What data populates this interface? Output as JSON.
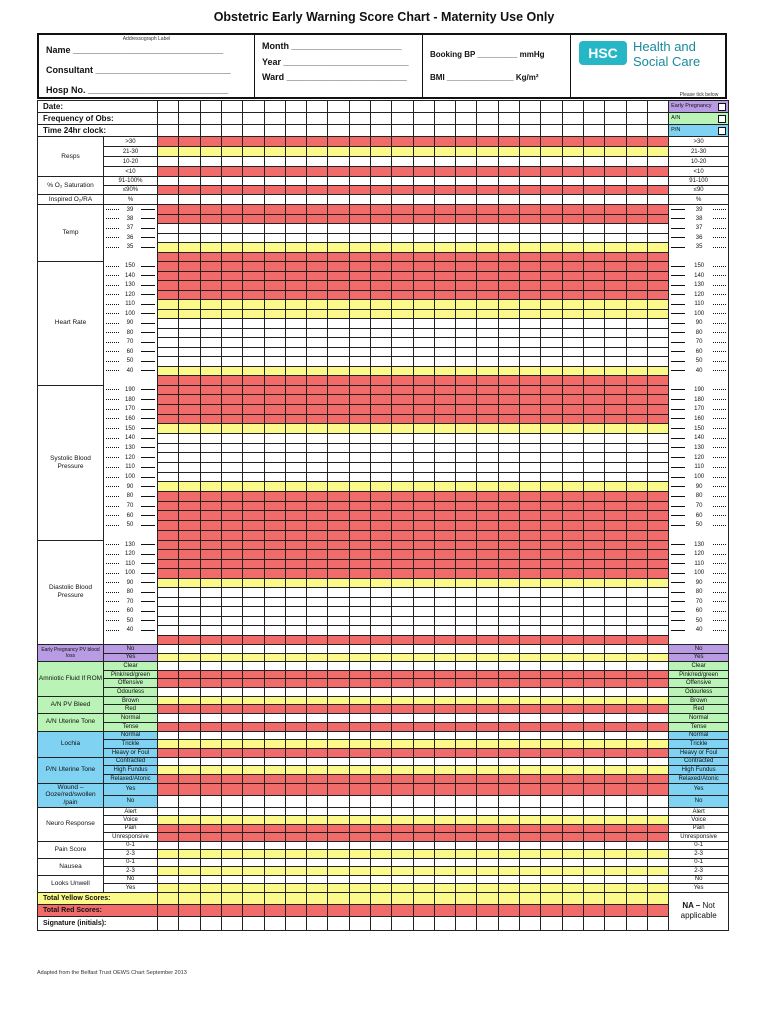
{
  "title": "Obstetric Early Warning Score Chart - Maternity Use Only",
  "header": {
    "addressograph": "Addressograph Label",
    "name": "Name ______________________________",
    "consultant": "Consultant ___________________________",
    "hosp_no": "Hosp No. ____________________________",
    "month": "Month ______________________",
    "year": "Year _________________________",
    "ward": "Ward ________________________",
    "booking_bp": "Booking BP _________ mmHg",
    "bmi": "BMI _______________ Kg/m²",
    "logo_mark": "HSC",
    "logo_line1": "Health and",
    "logo_line2": "Social Care",
    "tick_note": "Please tick below"
  },
  "colors": {
    "red": "#f26b6b",
    "yellow": "#fbf98a",
    "white": "#ffffff",
    "purple": "#b89be3",
    "green": "#b9f3b5",
    "blue": "#7fd2f2"
  },
  "top_rows": [
    {
      "label": "Date:",
      "tick": "Early Pregnancy",
      "tick_color": "purple"
    },
    {
      "label": "Frequency of Obs:",
      "tick": "A/N",
      "tick_color": "green"
    },
    {
      "label": "Time 24hr clock:",
      "tick": "P/N",
      "tick_color": "blue"
    }
  ],
  "columns": 24,
  "sections": [
    {
      "label": "Resps",
      "bg": "white",
      "h": 10,
      "rows": [
        {
          "v": ">30",
          "c": "red"
        },
        {
          "v": "21-30",
          "c": "yellow"
        },
        {
          "v": "10-20",
          "c": "white"
        },
        {
          "v": "<10",
          "c": "red"
        }
      ]
    },
    {
      "label": "% O₂ Saturation",
      "bg": "white",
      "h": 9,
      "rows": [
        {
          "v": "91-100%",
          "r": "91-100",
          "c": "white"
        },
        {
          "v": "≤90%",
          "r": "≤90",
          "c": "red"
        }
      ]
    },
    {
      "label": "Inspired O₂/RA",
      "bg": "white",
      "h": 10,
      "rows": [
        {
          "v": "%",
          "c": "white"
        }
      ]
    },
    {
      "label": "Temp",
      "bg": "white",
      "h": 9.5,
      "scale": true,
      "rows": [
        {
          "v": "39",
          "c": "red"
        },
        {
          "v": "38",
          "c": "red"
        },
        {
          "v": "37",
          "c": "white"
        },
        {
          "v": "36",
          "c": "white"
        },
        {
          "v": "35",
          "c": "yellow"
        },
        {
          "v": "",
          "c": "red"
        }
      ]
    },
    {
      "label": "Heart Rate",
      "bg": "white",
      "h": 9.5,
      "scale": true,
      "rows": [
        {
          "v": "150",
          "c": "red"
        },
        {
          "v": "140",
          "c": "red"
        },
        {
          "v": "130",
          "c": "red"
        },
        {
          "v": "120",
          "c": "red"
        },
        {
          "v": "110",
          "c": "yellow"
        },
        {
          "v": "100",
          "c": "yellow"
        },
        {
          "v": "90",
          "c": "white"
        },
        {
          "v": "80",
          "c": "white"
        },
        {
          "v": "70",
          "c": "white"
        },
        {
          "v": "60",
          "c": "white"
        },
        {
          "v": "50",
          "c": "white"
        },
        {
          "v": "40",
          "c": "yellow"
        },
        {
          "v": "",
          "c": "red"
        }
      ]
    },
    {
      "label": "Systolic Blood Pressure",
      "bg": "white",
      "h": 9.7,
      "scale": true,
      "rows": [
        {
          "v": "190",
          "c": "red"
        },
        {
          "v": "180",
          "c": "red"
        },
        {
          "v": "170",
          "c": "red"
        },
        {
          "v": "160",
          "c": "red"
        },
        {
          "v": "150",
          "c": "yellow"
        },
        {
          "v": "140",
          "c": "white"
        },
        {
          "v": "130",
          "c": "white"
        },
        {
          "v": "120",
          "c": "white"
        },
        {
          "v": "110",
          "c": "white"
        },
        {
          "v": "100",
          "c": "white"
        },
        {
          "v": "90",
          "c": "yellow"
        },
        {
          "v": "80",
          "c": "red"
        },
        {
          "v": "70",
          "c": "red"
        },
        {
          "v": "60",
          "c": "red"
        },
        {
          "v": "50",
          "c": "red"
        },
        {
          "v": "",
          "c": "red"
        }
      ]
    },
    {
      "label": "Diastolic Blood Pressure",
      "bg": "white",
      "h": 9.5,
      "scale": true,
      "rows": [
        {
          "v": "130",
          "c": "red"
        },
        {
          "v": "120",
          "c": "red"
        },
        {
          "v": "110",
          "c": "red"
        },
        {
          "v": "100",
          "c": "red"
        },
        {
          "v": "90",
          "c": "yellow"
        },
        {
          "v": "80",
          "c": "white"
        },
        {
          "v": "70",
          "c": "white"
        },
        {
          "v": "60",
          "c": "white"
        },
        {
          "v": "50",
          "c": "white"
        },
        {
          "v": "40",
          "c": "white"
        },
        {
          "v": "",
          "c": "red"
        }
      ]
    },
    {
      "label": "Early Pregnancy PV blood loss",
      "bg": "purple",
      "h": 8.5,
      "rows": [
        {
          "v": "No",
          "c": "white"
        },
        {
          "v": "Yes",
          "c": "yellow"
        }
      ]
    },
    {
      "label": "Amniotic Fluid If ROM",
      "bg": "green",
      "h": 8.7,
      "rows": [
        {
          "v": "Clear",
          "c": "white"
        },
        {
          "v": "Pink/red/green",
          "c": "red"
        },
        {
          "v": "Offensive",
          "c": "red"
        },
        {
          "v": "Odourless",
          "c": "white"
        }
      ]
    },
    {
      "label": "A/N PV Bleed",
      "bg": "green",
      "h": 8.7,
      "rows": [
        {
          "v": "Brown",
          "c": "yellow"
        },
        {
          "v": "Red",
          "c": "red"
        }
      ]
    },
    {
      "label": "A/N Uterine Tone",
      "bg": "green",
      "h": 8.7,
      "rows": [
        {
          "v": "Normal",
          "c": "white"
        },
        {
          "v": "Tense",
          "c": "red"
        }
      ]
    },
    {
      "label": "Lochia",
      "bg": "blue",
      "h": 8.7,
      "rows": [
        {
          "v": "Normal",
          "c": "white"
        },
        {
          "v": "Trickle",
          "c": "yellow"
        },
        {
          "v": "Heavy or Foul",
          "c": "red"
        }
      ]
    },
    {
      "label": "P/N Uterine Tone",
      "bg": "blue",
      "h": 8.7,
      "rows": [
        {
          "v": "Contracted",
          "c": "white"
        },
        {
          "v": "High Fundus",
          "c": "yellow"
        },
        {
          "v": "Relaxed/Atonic",
          "c": "red"
        }
      ]
    },
    {
      "label": "Wound – Ooze/red/swollen /pain",
      "bg": "blue",
      "h": 10.5,
      "rows": [
        {
          "v": "Yes",
          "c": "red"
        },
        {
          "v": "No",
          "c": "white"
        }
      ]
    },
    {
      "label": "Neuro Response",
      "bg": "white",
      "h": 8.4,
      "rows": [
        {
          "v": "Alert",
          "c": "white"
        },
        {
          "v": "Voice",
          "c": "yellow"
        },
        {
          "v": "Pain",
          "c": "red"
        },
        {
          "v": "Unresponsive",
          "c": "red"
        }
      ]
    },
    {
      "label": "Pain Score",
      "bg": "white",
      "h": 8.5,
      "rows": [
        {
          "v": "0-1",
          "c": "white"
        },
        {
          "v": "2-3",
          "c": "yellow"
        }
      ]
    },
    {
      "label": "Nausea",
      "bg": "white",
      "h": 8.5,
      "rows": [
        {
          "v": "0-1",
          "c": "white"
        },
        {
          "v": "2-3",
          "c": "yellow"
        }
      ]
    },
    {
      "label": "Looks Unwell",
      "bg": "white",
      "h": 8.5,
      "rows": [
        {
          "v": "No",
          "c": "white"
        },
        {
          "v": "Yes",
          "c": "yellow"
        }
      ]
    }
  ],
  "totals": [
    {
      "label": "Total Yellow Scores:",
      "c": "yellow"
    },
    {
      "label": "Total Red Scores:",
      "c": "red"
    },
    {
      "label": "Signature (initials):",
      "c": "white"
    }
  ],
  "na_bold": "NA –",
  "na_text": "Not applicable",
  "footer": "Adapted from the Belfast Trust OEWS Chart September 2013"
}
